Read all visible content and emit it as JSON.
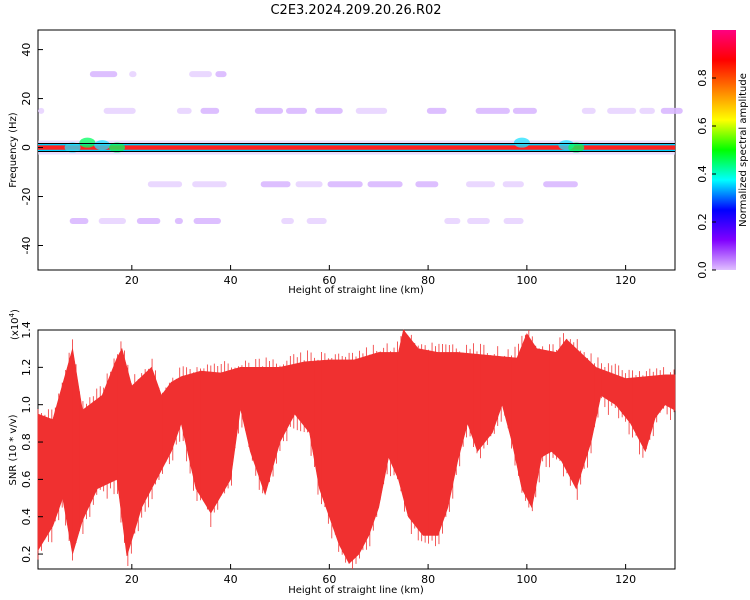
{
  "title": "C2E3.2024.209.20.26.R02",
  "chart_data": [
    {
      "type": "heatmap",
      "xlabel": "Height of straight line (km)",
      "ylabel": "Frequency (Hz)",
      "xlim": [
        1,
        130
      ],
      "ylim": [
        -50,
        48
      ],
      "xticks": [
        20,
        40,
        60,
        80,
        100,
        120
      ],
      "yticks": [
        -40,
        -20,
        0,
        20,
        40
      ],
      "colorbar": {
        "label": "Normalized spectral amplitude",
        "range": [
          0.0,
          1.0
        ],
        "ticks": [
          0.0,
          0.2,
          0.4,
          0.6,
          0.8
        ],
        "colors": [
          "#e0c0ff",
          "#8000ff",
          "#0000ff",
          "#00ffff",
          "#00ff00",
          "#ffff00",
          "#ff8000",
          "#ff0000",
          "#ff0080"
        ]
      },
      "bands": [
        {
          "freq": 0,
          "amplitude": 0.85,
          "x_range": [
            1,
            130
          ]
        },
        {
          "freq": 15,
          "amplitude": 0.08,
          "x_range": [
            1,
            130
          ]
        },
        {
          "freq": -15,
          "amplitude": 0.08,
          "x_range": [
            1,
            130
          ]
        },
        {
          "freq": 30,
          "amplitude": 0.04,
          "x_range": [
            1,
            40
          ]
        },
        {
          "freq": -30,
          "amplitude": 0.04,
          "x_range": [
            1,
            100
          ]
        }
      ]
    },
    {
      "type": "area",
      "xlabel": "Height of straight line (km)",
      "ylabel": "SNR (10 * v/v)",
      "yscale_label": "(x10",
      "yscale_exponent": "4",
      "xlim": [
        1,
        130
      ],
      "ylim": [
        0.12,
        1.4
      ],
      "xticks": [
        20,
        40,
        60,
        80,
        100,
        120
      ],
      "yticks": [
        0.2,
        0.4,
        0.6,
        0.8,
        1.0,
        1.2,
        1.4
      ],
      "color": "#f03030",
      "series": [
        {
          "upper": [
            [
              1,
              0.95
            ],
            [
              4,
              0.92
            ],
            [
              8,
              1.3
            ],
            [
              10,
              0.97
            ],
            [
              14,
              1.05
            ],
            [
              17,
              1.25
            ],
            [
              18,
              1.3
            ],
            [
              20,
              1.1
            ],
            [
              24,
              1.2
            ],
            [
              26,
              1.05
            ],
            [
              28,
              1.12
            ],
            [
              30,
              1.15
            ],
            [
              34,
              1.18
            ],
            [
              38,
              1.17
            ],
            [
              42,
              1.2
            ],
            [
              46,
              1.2
            ],
            [
              50,
              1.2
            ],
            [
              55,
              1.23
            ],
            [
              60,
              1.24
            ],
            [
              65,
              1.24
            ],
            [
              70,
              1.28
            ],
            [
              74,
              1.28
            ],
            [
              75,
              1.4
            ],
            [
              78,
              1.3
            ],
            [
              82,
              1.28
            ],
            [
              86,
              1.28
            ],
            [
              90,
              1.27
            ],
            [
              94,
              1.26
            ],
            [
              98,
              1.25
            ],
            [
              100,
              1.38
            ],
            [
              102,
              1.3
            ],
            [
              106,
              1.28
            ],
            [
              108,
              1.35
            ],
            [
              110,
              1.3
            ],
            [
              114,
              1.2
            ],
            [
              118,
              1.16
            ],
            [
              120,
              1.14
            ],
            [
              124,
              1.15
            ],
            [
              128,
              1.16
            ],
            [
              130,
              1.16
            ]
          ],
          "lower": [
            [
              1,
              0.22
            ],
            [
              4,
              0.35
            ],
            [
              6,
              0.5
            ],
            [
              8,
              0.2
            ],
            [
              10,
              0.38
            ],
            [
              13,
              0.55
            ],
            [
              17,
              0.6
            ],
            [
              19,
              0.19
            ],
            [
              22,
              0.45
            ],
            [
              25,
              0.6
            ],
            [
              28,
              0.75
            ],
            [
              30,
              0.9
            ],
            [
              33,
              0.55
            ],
            [
              36,
              0.42
            ],
            [
              40,
              0.6
            ],
            [
              42,
              0.98
            ],
            [
              44,
              0.75
            ],
            [
              47,
              0.52
            ],
            [
              50,
              0.8
            ],
            [
              53,
              0.95
            ],
            [
              56,
              0.85
            ],
            [
              58,
              0.55
            ],
            [
              60,
              0.4
            ],
            [
              62,
              0.25
            ],
            [
              64,
              0.15
            ],
            [
              66,
              0.2
            ],
            [
              68,
              0.3
            ],
            [
              70,
              0.45
            ],
            [
              72,
              0.72
            ],
            [
              74,
              0.6
            ],
            [
              76,
              0.4
            ],
            [
              79,
              0.3
            ],
            [
              82,
              0.3
            ],
            [
              84,
              0.45
            ],
            [
              86,
              0.7
            ],
            [
              88,
              0.9
            ],
            [
              90,
              0.75
            ],
            [
              93,
              0.85
            ],
            [
              95,
              1.0
            ],
            [
              97,
              0.8
            ],
            [
              99,
              0.55
            ],
            [
              101,
              0.45
            ],
            [
              103,
              0.72
            ],
            [
              105,
              0.75
            ],
            [
              107,
              0.7
            ],
            [
              110,
              0.55
            ],
            [
              113,
              0.8
            ],
            [
              115,
              1.05
            ],
            [
              118,
              1.0
            ],
            [
              121,
              0.9
            ],
            [
              124,
              0.75
            ],
            [
              126,
              0.93
            ],
            [
              128,
              1.0
            ],
            [
              130,
              0.97
            ]
          ]
        }
      ]
    }
  ]
}
